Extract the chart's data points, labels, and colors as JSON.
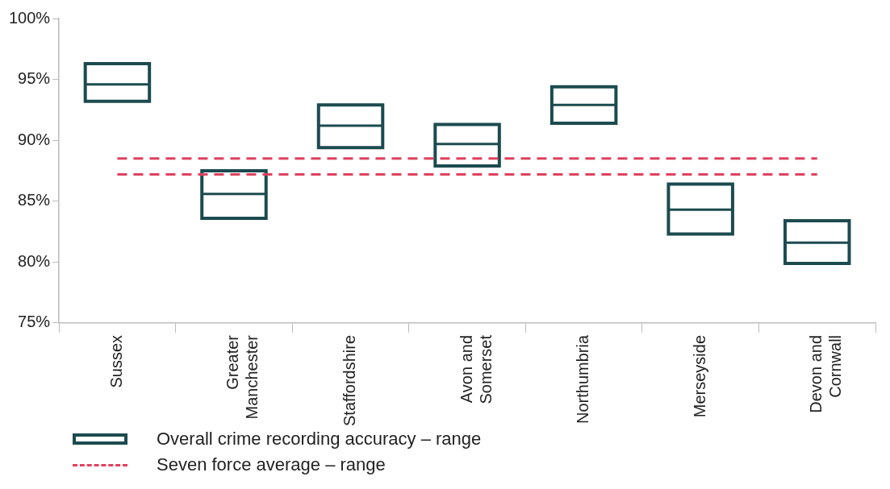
{
  "chart_data": {
    "type": "box",
    "categories": [
      "Sussex",
      "Greater Manchester",
      "Staffordshire",
      "Avon and Somerset",
      "Northumbria",
      "Merseyside",
      "Devon and Cornwall"
    ],
    "series": [
      {
        "name": "Overall crime recording accuracy – range",
        "color": "#1c4b4f",
        "boxes": [
          {
            "low": 93.2,
            "q1": 93.2,
            "median": 94.6,
            "q3": 96.3,
            "high": 96.3
          },
          {
            "low": 83.6,
            "q1": 83.6,
            "median": 85.6,
            "q3": 87.5,
            "high": 87.5
          },
          {
            "low": 89.4,
            "q1": 89.4,
            "median": 91.2,
            "q3": 92.9,
            "high": 92.9
          },
          {
            "low": 87.9,
            "q1": 87.9,
            "median": 89.7,
            "q3": 91.3,
            "high": 91.3
          },
          {
            "low": 91.4,
            "q1": 91.4,
            "median": 92.9,
            "q3": 94.4,
            "high": 94.4
          },
          {
            "low": 82.3,
            "q1": 82.3,
            "median": 84.3,
            "q3": 86.4,
            "high": 86.4
          },
          {
            "low": 79.9,
            "q1": 79.9,
            "median": 81.6,
            "q3": 83.4,
            "high": 83.4
          }
        ]
      }
    ],
    "ref_lines": [
      {
        "axis": "y",
        "value": 88.5,
        "label": "Seven force average – range",
        "color": "#e0405e",
        "line_style": "dashed"
      },
      {
        "axis": "y",
        "value": 87.2,
        "color": "#e0405e",
        "line_style": "dashed"
      }
    ],
    "ylim": [
      75,
      100
    ],
    "yticks": [
      {
        "value": 75,
        "label": "75%"
      },
      {
        "value": 80,
        "label": "80%"
      },
      {
        "value": 85,
        "label": "85%"
      },
      {
        "value": 90,
        "label": "90%"
      },
      {
        "value": 95,
        "label": "95%"
      },
      {
        "value": 100,
        "label": "100%"
      }
    ],
    "grid": false,
    "legend": "bottom"
  }
}
